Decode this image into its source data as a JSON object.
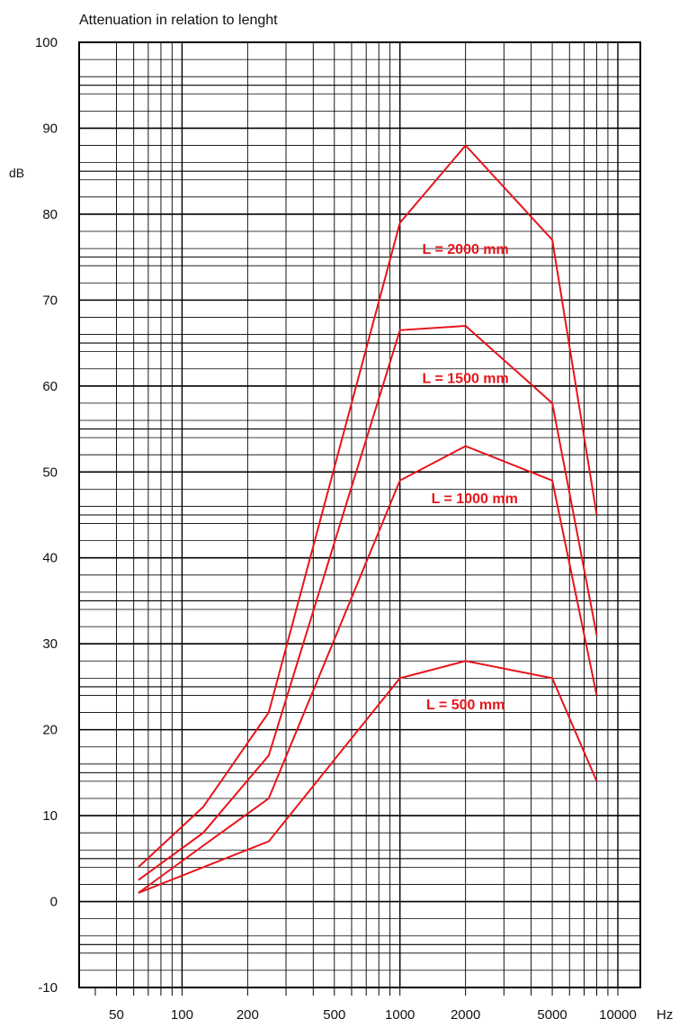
{
  "chart_data": {
    "type": "line",
    "title": "Attenuation in relation to lenght",
    "ylabel": "dB",
    "xlabel": "Hz",
    "x_scale": "log",
    "xlim": [
      40,
      10000
    ],
    "ylim": [
      -10,
      100
    ],
    "grid": true,
    "y_ticks": [
      -10,
      0,
      10,
      20,
      30,
      40,
      50,
      60,
      70,
      80,
      90,
      100
    ],
    "y_tick_labels": [
      "-10",
      "0",
      "10",
      "20",
      "30",
      "40",
      "50",
      "60",
      "70",
      "80",
      "90",
      "100"
    ],
    "x_ticks": [
      50,
      100,
      200,
      500,
      1000,
      2000,
      5000,
      10000
    ],
    "x_tick_labels": [
      "50",
      "100",
      "200",
      "500",
      "1000",
      "2000",
      "5000",
      "10000"
    ],
    "x": [
      63,
      125,
      250,
      1000,
      2000,
      5000,
      8000
    ],
    "line_color": "#e8141b",
    "series": [
      {
        "name": "L = 2000 mm",
        "values": [
          4,
          11,
          22,
          79,
          88,
          77,
          45
        ],
        "label_at": [
          2000,
          76
        ]
      },
      {
        "name": "L = 1500 mm",
        "values": [
          2.5,
          8,
          17,
          66.5,
          67,
          58,
          31
        ],
        "label_at": [
          2000,
          61
        ]
      },
      {
        "name": "L = 1000 mm",
        "values": [
          1,
          6.5,
          12,
          49,
          53,
          49,
          24
        ],
        "label_at": [
          2200,
          47
        ]
      },
      {
        "name": "L = 500 mm",
        "values": [
          1,
          4,
          7,
          26,
          28,
          26,
          14
        ],
        "label_at": [
          2000,
          23
        ]
      }
    ]
  }
}
